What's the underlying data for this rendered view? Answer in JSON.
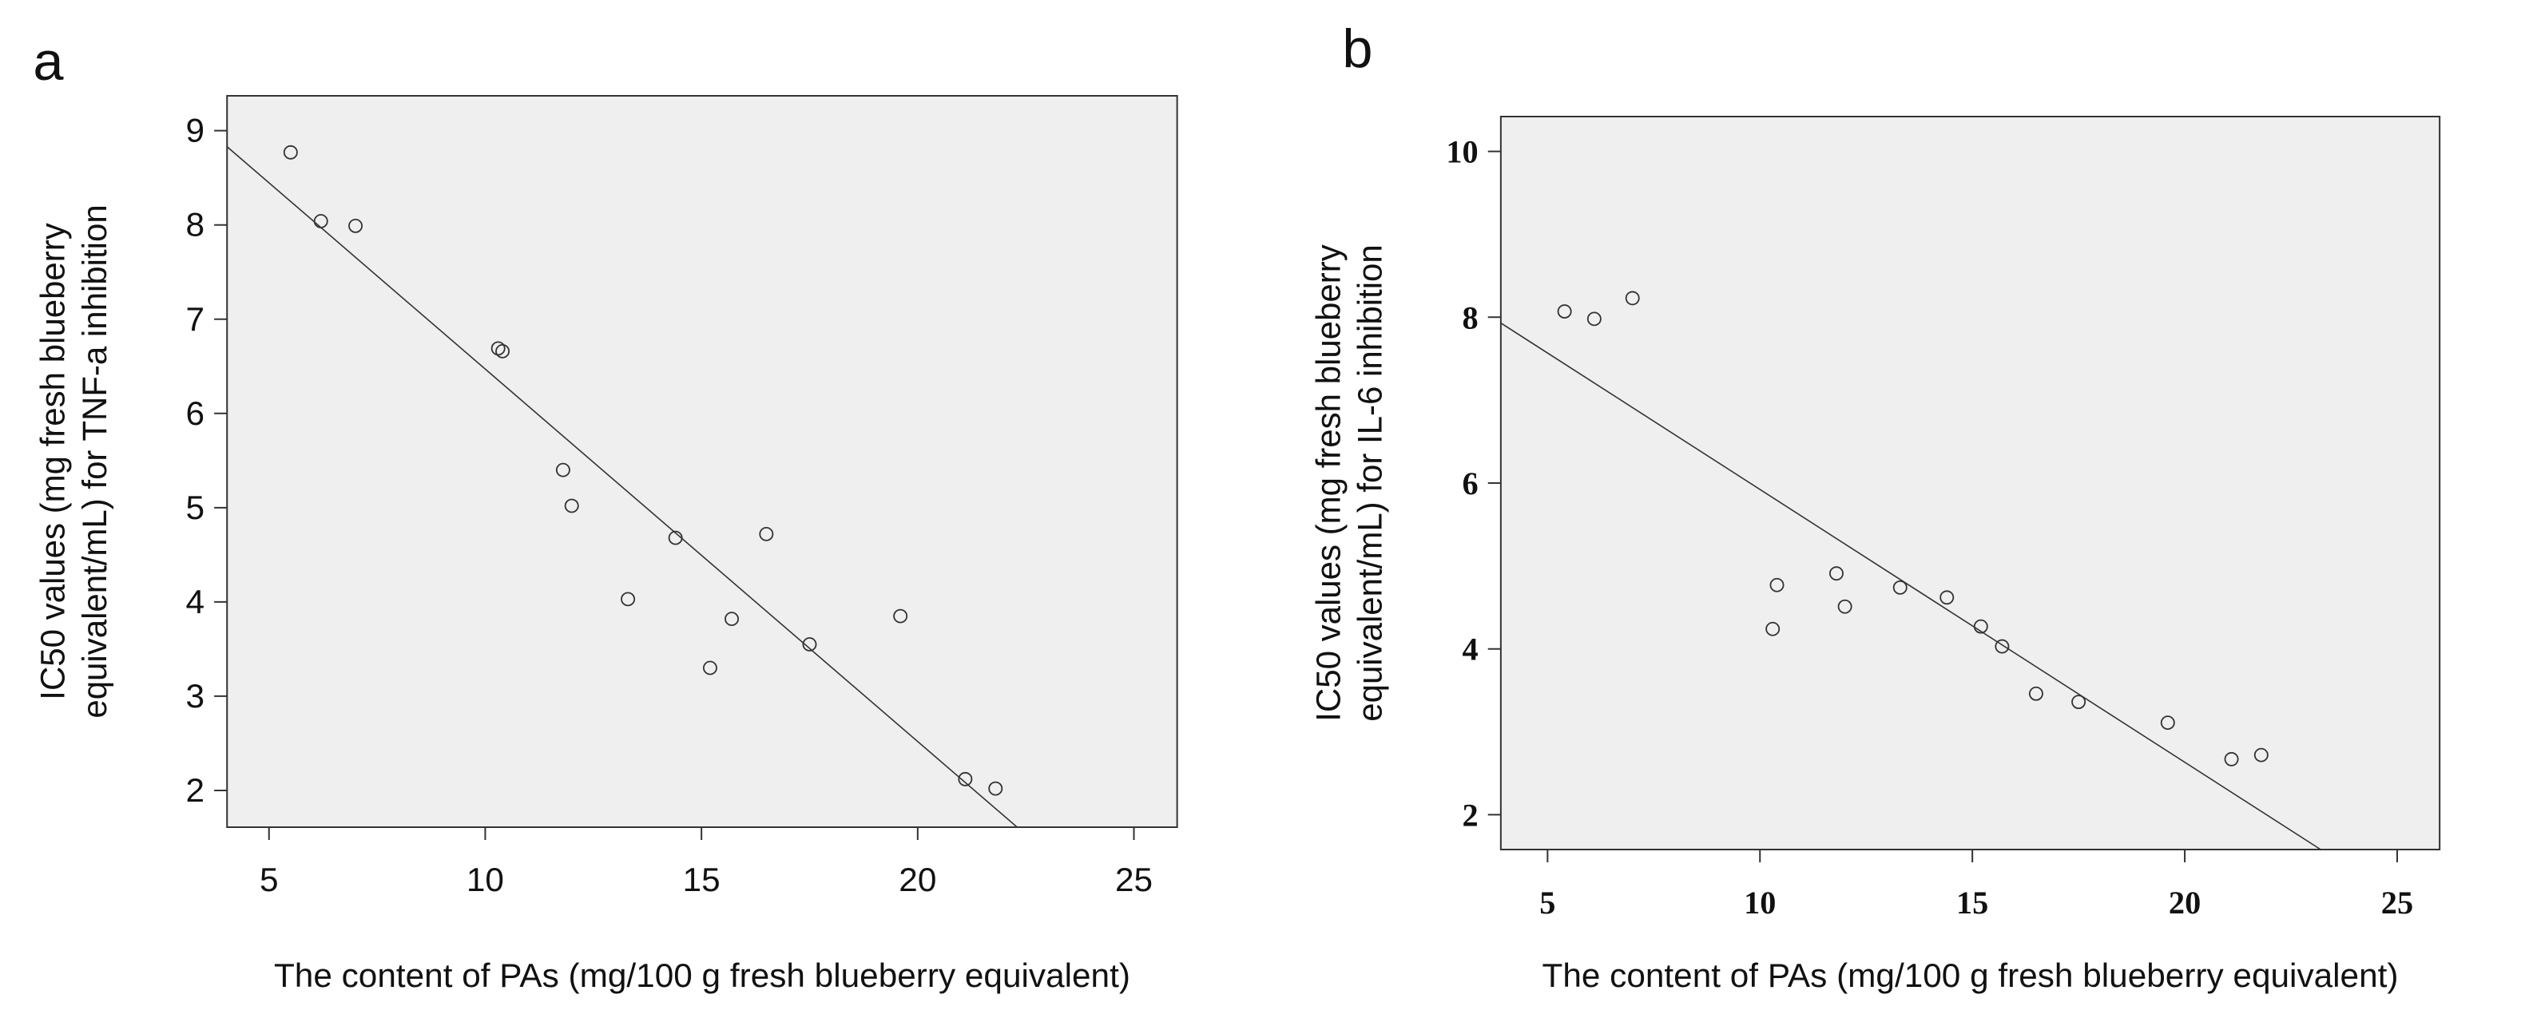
{
  "chart_data": [
    {
      "type": "scatter",
      "panel_label": "a",
      "xlabel": "The content of PAs (mg/100 g fresh blueberry equivalent)",
      "ylabel": [
        "IC50 values (mg fresh blueberry",
        "equivalent/mL) for TNF-a  inhibition"
      ],
      "x": [
        5.5,
        6.2,
        7.0,
        10.3,
        10.4,
        11.8,
        12.0,
        13.3,
        14.4,
        15.2,
        15.7,
        16.5,
        17.5,
        19.6,
        21.1,
        21.8
      ],
      "y": [
        8.77,
        8.04,
        7.99,
        6.69,
        6.66,
        5.4,
        5.02,
        4.03,
        4.68,
        3.3,
        3.82,
        4.72,
        3.55,
        3.85,
        2.12,
        2.02
      ],
      "fit_line": {
        "x": [
          4.03,
          22.3
        ],
        "y": [
          8.83,
          1.61
        ]
      },
      "xlim": [
        4.03,
        26.0
      ],
      "ylim": [
        1.61,
        9.37
      ],
      "xticks": [
        5,
        10,
        15,
        20,
        25
      ],
      "yticks": [
        2,
        3,
        4,
        5,
        6,
        7,
        8,
        9
      ],
      "marker_color": "#333333",
      "line_color": "#333333",
      "background": "#efefef",
      "tick_font": "sans"
    },
    {
      "type": "scatter",
      "panel_label": "b",
      "xlabel": "The content of PAs (mg/100 g fresh blueberry equivalent)",
      "ylabel": [
        "IC50 values (mg fresh blueberry",
        "equivalent/mL) for IL-6 inhibition"
      ],
      "x": [
        5.4,
        6.1,
        7.0,
        10.3,
        10.4,
        11.8,
        12.0,
        13.3,
        14.4,
        15.2,
        15.7,
        16.5,
        17.5,
        19.6,
        21.1,
        21.8
      ],
      "y": [
        8.07,
        7.98,
        8.23,
        4.24,
        4.77,
        4.91,
        4.51,
        4.74,
        4.62,
        4.27,
        4.03,
        3.46,
        3.36,
        3.11,
        2.67,
        2.72
      ],
      "fit_line": {
        "x": [
          3.9,
          23.2
        ],
        "y": [
          7.93,
          1.58
        ]
      },
      "xlim": [
        3.9,
        26.0
      ],
      "ylim": [
        1.58,
        10.42
      ],
      "xticks": [
        5,
        10,
        15,
        20,
        25
      ],
      "yticks": [
        2,
        4,
        6,
        8,
        10
      ],
      "marker_color": "#333333",
      "line_color": "#333333",
      "background": "#efefef",
      "tick_font": "serif"
    }
  ]
}
